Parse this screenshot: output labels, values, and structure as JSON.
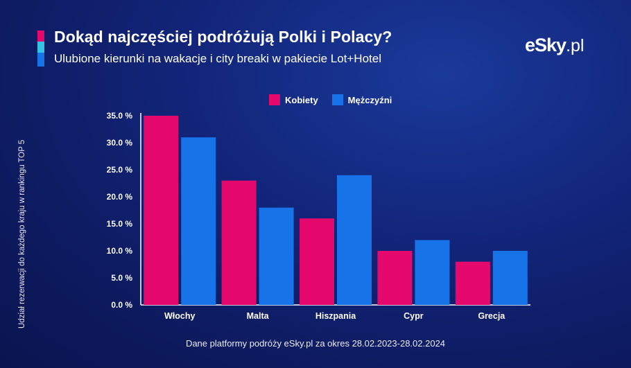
{
  "header": {
    "title": "Dokąd najczęściej podróżują Polki i Polacy?",
    "subtitle": "Ulubione kierunki na wakacje i city breaki w pakiecie Lot+Hotel"
  },
  "logo": {
    "main": "eSky",
    "suffix": ".pl"
  },
  "footer": {
    "source": "Dane platformy podróży eSky.pl za okres 28.02.2023-28.02.2024"
  },
  "colors": {
    "women": "#e5096e",
    "men": "#1673e8",
    "accent_mid": "#35c3e4",
    "axis": "#ffffff"
  },
  "chart_data": {
    "type": "bar",
    "ylabel": "Udział rezerwacji do każdego kraju w rankingu TOP 5",
    "xlabel": "",
    "categories": [
      "Włochy",
      "Malta",
      "Hiszpania",
      "Cypr",
      "Grecja"
    ],
    "series": [
      {
        "name": "Kobiety",
        "values": [
          35,
          23,
          16,
          10,
          8
        ]
      },
      {
        "name": "Mężczyźni",
        "values": [
          31,
          18,
          24,
          12,
          10
        ]
      }
    ],
    "ylim": [
      0,
      35
    ],
    "yticks": [
      0,
      5,
      10,
      15,
      20,
      25,
      30,
      35
    ],
    "ytick_labels": [
      "0.0 %",
      "5.0 %",
      "10.0 %",
      "15.0 %",
      "20.0 %",
      "25.0 %",
      "30.0 %",
      "35.0 %"
    ],
    "legend_position": "top-center",
    "grid": false
  }
}
